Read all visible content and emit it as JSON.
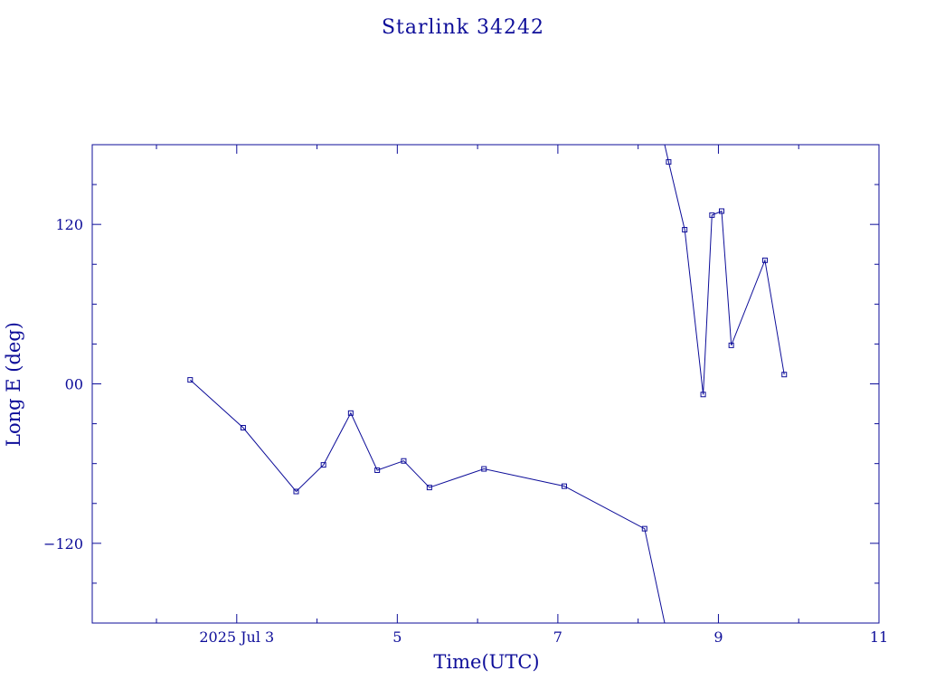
{
  "colors": {
    "ink": "#0d0d99",
    "background": "#ffffff"
  },
  "chart_data": {
    "type": "line",
    "title": "Starlink 34242",
    "xlabel": "Time(UTC)",
    "ylabel": "Long E (deg)",
    "x_unit": "day of July 2025",
    "xlim": [
      1.2,
      11.0
    ],
    "ylim": [
      -180,
      180
    ],
    "grid": false,
    "legend": "none",
    "x_ticks": [
      {
        "value": 3,
        "label": "2025 Jul  3"
      },
      {
        "value": 5,
        "label": "5"
      },
      {
        "value": 7,
        "label": "7"
      },
      {
        "value": 9,
        "label": "9"
      },
      {
        "value": 11,
        "label": "11"
      }
    ],
    "y_ticks": [
      {
        "value": 120,
        "label": "120"
      },
      {
        "value": 0,
        "label": "00"
      },
      {
        "value": -120,
        "label": "−120"
      }
    ],
    "series": [
      {
        "x": [
          2.42,
          3.08,
          3.74,
          4.08,
          4.42,
          4.75,
          5.08,
          5.4,
          6.08,
          7.08,
          8.08,
          8.33
        ],
        "y": [
          3,
          -33,
          -81,
          -61,
          -22,
          -65,
          -58,
          -78,
          -64,
          -77,
          -109,
          -180
        ],
        "markers": [
          true,
          true,
          true,
          true,
          true,
          true,
          true,
          true,
          true,
          true,
          true,
          false
        ]
      },
      {
        "x": [
          8.33,
          8.38,
          8.58,
          8.81,
          8.92,
          9.04,
          9.16,
          9.58,
          9.82
        ],
        "y": [
          180,
          167,
          116,
          -8,
          127,
          130,
          29,
          93,
          7
        ],
        "markers": [
          false,
          true,
          true,
          true,
          true,
          true,
          true,
          true,
          true
        ]
      }
    ]
  }
}
